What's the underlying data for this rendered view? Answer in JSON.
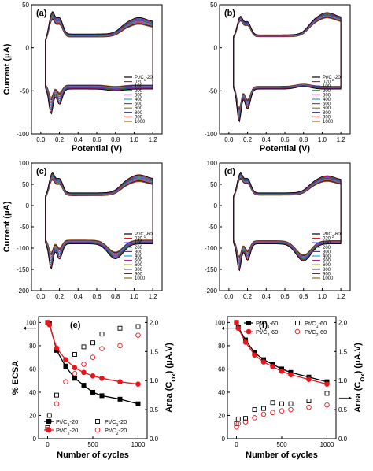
{
  "chart_data": [
    {
      "type": "line",
      "panel_label": "(a)",
      "xlabel": "Potential (V)",
      "ylabel": "Current (μA)",
      "xlim": [
        -0.1,
        1.3
      ],
      "ylim": [
        -100,
        50
      ],
      "xticks": [
        0.0,
        0.2,
        0.4,
        0.6,
        0.8,
        1.0,
        1.2
      ],
      "xtick_labels": [
        "0.0",
        "0.2",
        "0.4",
        "0.6",
        "0.8",
        "1.0",
        "1.2"
      ],
      "yticks": [
        -100,
        -50,
        0,
        50
      ],
      "ytick_labels": [
        "-100",
        "-50",
        "0",
        "50"
      ],
      "legend_position": "right",
      "cycles": [
        {
          "name": "Pt/C1-20",
          "color": "#000000",
          "scale": 1.0
        },
        {
          "name": "020",
          "color": "#e8161b",
          "scale": 0.96
        },
        {
          "name": "100",
          "color": "#2a2ad8",
          "scale": 0.9
        },
        {
          "name": "200",
          "color": "#1a8a1a",
          "scale": 0.84
        },
        {
          "name": "300",
          "color": "#7a1fa2",
          "scale": 0.78
        },
        {
          "name": "400",
          "color": "#20a8c0",
          "scale": 0.73
        },
        {
          "name": "500",
          "color": "#c01e8c",
          "scale": 0.68
        },
        {
          "name": "600",
          "color": "#8b8b1a",
          "scale": 0.63
        },
        {
          "name": "800",
          "color": "#1a1a80",
          "scale": 0.58
        },
        {
          "name": "900",
          "color": "#8b1a1a",
          "scale": 0.54
        },
        {
          "name": "1000",
          "color": "#8b6a1a",
          "scale": 0.5
        }
      ],
      "profile": {
        "h_anodic": 47,
        "h_cathodic": -80,
        "base_anodic": 8,
        "base_cathodic": -48,
        "dl_anodic": 16,
        "oxide_anodic": 30,
        "ox_red_peak": -50,
        "ox_red_x": 0.8
      }
    },
    {
      "type": "line",
      "panel_label": "(b)",
      "xlabel": "Potential (V)",
      "ylabel": "",
      "xlim": [
        -0.1,
        1.3
      ],
      "ylim": [
        -100,
        50
      ],
      "xticks": [
        0.0,
        0.2,
        0.4,
        0.6,
        0.8,
        1.0,
        1.2
      ],
      "xtick_labels": [
        "0.0",
        "0.2",
        "0.4",
        "0.6",
        "0.8",
        "1.0",
        "1.2"
      ],
      "yticks": [
        -100,
        -50,
        0,
        50
      ],
      "ytick_labels": [
        "-100",
        "-50",
        "0",
        "50"
      ],
      "legend_position": "right",
      "cycles": [
        {
          "name": "Pt/C2-20",
          "color": "#000000",
          "scale": 1.0
        },
        {
          "name": "020",
          "color": "#e8161b",
          "scale": 0.97
        },
        {
          "name": "100",
          "color": "#2a2ad8",
          "scale": 0.93
        },
        {
          "name": "200",
          "color": "#1a8a1a",
          "scale": 0.89
        },
        {
          "name": "300",
          "color": "#7a1fa2",
          "scale": 0.85
        },
        {
          "name": "400",
          "color": "#20a8c0",
          "scale": 0.81
        },
        {
          "name": "500",
          "color": "#c01e8c",
          "scale": 0.78
        },
        {
          "name": "600",
          "color": "#8b8b1a",
          "scale": 0.75
        },
        {
          "name": "800",
          "color": "#1a1a80",
          "scale": 0.72
        },
        {
          "name": "900",
          "color": "#8b1a1a",
          "scale": 0.69
        },
        {
          "name": "1000",
          "color": "#8b6a1a",
          "scale": 0.66
        }
      ],
      "profile": {
        "h_anodic": 40,
        "h_cathodic": -90,
        "base_anodic": 12,
        "base_cathodic": -48,
        "dl_anodic": 15,
        "oxide_anodic": 35,
        "ox_red_peak": -45,
        "ox_red_x": 0.8
      }
    },
    {
      "type": "line",
      "panel_label": "(c)",
      "xlabel": "",
      "ylabel": "Current (μA)",
      "xlim": [
        -0.1,
        1.3
      ],
      "ylim": [
        -200,
        100
      ],
      "xticks": [
        0.0,
        0.2,
        0.4,
        0.6,
        0.8,
        1.0,
        1.2
      ],
      "xtick_labels": [
        "0.0",
        "0.2",
        "0.4",
        "0.6",
        "0.8",
        "1.0",
        "1.2"
      ],
      "yticks": [
        -200,
        -150,
        -100,
        -50,
        0,
        50,
        100
      ],
      "ytick_labels": [
        "-200",
        "-150",
        "-100",
        "-50",
        "0",
        "50",
        "100"
      ],
      "legend_position": "right",
      "cycles": [
        {
          "name": "Pt/C1-60",
          "color": "#000000",
          "scale": 1.0
        },
        {
          "name": "020",
          "color": "#e8161b",
          "scale": 0.96
        },
        {
          "name": "100",
          "color": "#2a2ad8",
          "scale": 0.9
        },
        {
          "name": "200",
          "color": "#1a8a1a",
          "scale": 0.84
        },
        {
          "name": "300",
          "color": "#7a1fa2",
          "scale": 0.78
        },
        {
          "name": "400",
          "color": "#20a8c0",
          "scale": 0.73
        },
        {
          "name": "500",
          "color": "#c01e8c",
          "scale": 0.68
        },
        {
          "name": "600",
          "color": "#8b8b1a",
          "scale": 0.63
        },
        {
          "name": "800",
          "color": "#1a1a80",
          "scale": 0.58
        },
        {
          "name": "900",
          "color": "#8b1a1a",
          "scale": 0.54
        },
        {
          "name": "1000",
          "color": "#8b6a1a",
          "scale": 0.5
        }
      ],
      "profile": {
        "h_anodic": 85,
        "h_cathodic": -155,
        "base_anodic": 20,
        "base_cathodic": -90,
        "dl_anodic": 30,
        "oxide_anodic": 62,
        "ox_red_peak": -125,
        "ox_red_x": 0.8
      }
    },
    {
      "type": "line",
      "panel_label": "(d)",
      "xlabel": "",
      "ylabel": "",
      "xlim": [
        -0.1,
        1.3
      ],
      "ylim": [
        -200,
        100
      ],
      "xticks": [
        0.0,
        0.2,
        0.4,
        0.6,
        0.8,
        1.0,
        1.2
      ],
      "xtick_labels": [
        "0.0",
        "0.2",
        "0.4",
        "0.6",
        "0.8",
        "1.0",
        "1.2"
      ],
      "yticks": [
        -200,
        -150,
        -100,
        -50,
        0,
        50,
        100
      ],
      "ytick_labels": [
        "-200",
        "-150",
        "-100",
        "-50",
        "0",
        "50",
        "100"
      ],
      "legend_position": "right",
      "cycles": [
        {
          "name": "Pt/C2-60",
          "color": "#000000",
          "scale": 1.0
        },
        {
          "name": "020",
          "color": "#e8161b",
          "scale": 0.96
        },
        {
          "name": "100",
          "color": "#2a2ad8",
          "scale": 0.91
        },
        {
          "name": "200",
          "color": "#1a8a1a",
          "scale": 0.86
        },
        {
          "name": "300",
          "color": "#7a1fa2",
          "scale": 0.81
        },
        {
          "name": "400",
          "color": "#20a8c0",
          "scale": 0.77
        },
        {
          "name": "500",
          "color": "#c01e8c",
          "scale": 0.73
        },
        {
          "name": "600",
          "color": "#8b8b1a",
          "scale": 0.69
        },
        {
          "name": "800",
          "color": "#1a1a80",
          "scale": 0.65
        },
        {
          "name": "900",
          "color": "#8b1a1a",
          "scale": 0.61
        },
        {
          "name": "1000",
          "color": "#8b6a1a",
          "scale": 0.58
        }
      ],
      "profile": {
        "h_anodic": 85,
        "h_cathodic": -160,
        "base_anodic": 20,
        "base_cathodic": -90,
        "dl_anodic": 30,
        "oxide_anodic": 60,
        "ox_red_peak": -130,
        "ox_red_x": 0.8
      }
    },
    {
      "type": "scatter",
      "panel_label": "(e)",
      "xlabel": "Number of cycles",
      "ylabel": "% ECSA",
      "ylabel_right": "Area (C_Ox) (μA.V)",
      "xlim": [
        -100,
        1100
      ],
      "ylim": [
        0,
        105
      ],
      "ylim_right": [
        0,
        2.1
      ],
      "xticks": [
        0,
        500,
        1000
      ],
      "xtick_labels": [
        "0",
        "500",
        "1000"
      ],
      "yticks": [
        0,
        20,
        40,
        60,
        80,
        100
      ],
      "ytick_labels": [
        "0",
        "20",
        "40",
        "60",
        "80",
        "100"
      ],
      "yticks_right": [
        0.0,
        0.5,
        1.0,
        1.5,
        2.0
      ],
      "ytick_labels_right": [
        "0.0",
        "0.5",
        "1.0",
        "1.5",
        "2.0"
      ],
      "legend_position": "bottom-right",
      "x": [
        0,
        20,
        100,
        200,
        300,
        400,
        500,
        600,
        800,
        1000
      ],
      "series": [
        {
          "name": "Pt/C1-20",
          "axis": "left",
          "style": "filled-square-line",
          "color": "#000000",
          "values": [
            100,
            99,
            76,
            62,
            52,
            46,
            40,
            37,
            34,
            30
          ]
        },
        {
          "name": "Pt/C2-20",
          "axis": "left",
          "style": "filled-circle-line",
          "color": "#e8161b",
          "values": [
            100,
            98,
            78,
            68,
            61,
            57,
            54,
            52,
            49,
            47
          ]
        },
        {
          "name": "Pt/C1-20",
          "axis": "right",
          "style": "open-square",
          "color": "#000000",
          "values": [
            0.19,
            0.4,
            0.75,
            1.25,
            1.45,
            1.58,
            1.65,
            1.8,
            1.9,
            1.93
          ]
        },
        {
          "name": "Pt/C2-20",
          "axis": "right",
          "style": "open-circle",
          "color": "#e8161b",
          "values": [
            0.16,
            0.3,
            0.6,
            0.98,
            1.12,
            1.28,
            1.4,
            1.55,
            1.6,
            1.78
          ]
        }
      ],
      "arrows": [
        {
          "direction": "left",
          "near": "0,1.2",
          "axis": "left"
        }
      ]
    },
    {
      "type": "scatter",
      "panel_label": "(f)",
      "xlabel": "Number of cycles",
      "ylabel": "",
      "ylabel_right": "Area (C_Ox) (μA.V)",
      "xlim": [
        -100,
        1100
      ],
      "ylim": [
        0,
        105
      ],
      "ylim_right": [
        0,
        2.1
      ],
      "xticks": [
        0,
        500,
        1000
      ],
      "xtick_labels": [
        "0",
        "500",
        "1000"
      ],
      "yticks": [
        0,
        20,
        40,
        60,
        80,
        100
      ],
      "ytick_labels": [
        "0",
        "20",
        "40",
        "60",
        "80",
        "100"
      ],
      "yticks_right": [
        0.0,
        0.5,
        1.0,
        1.5,
        2.0
      ],
      "ytick_labels_right": [
        "0.0",
        "0.5",
        "1.0",
        "1.5",
        "2.0"
      ],
      "legend_position": "top-right",
      "x": [
        0,
        20,
        100,
        200,
        300,
        400,
        500,
        600,
        800,
        1000
      ],
      "series": [
        {
          "name": "Pt/C1-60",
          "axis": "left",
          "style": "filled-square-line",
          "color": "#000000",
          "values": [
            100,
            96,
            85,
            74,
            68,
            64,
            60,
            57,
            53,
            49
          ]
        },
        {
          "name": "Pt/C2-60",
          "axis": "left",
          "style": "filled-circle-line",
          "color": "#e8161b",
          "values": [
            100,
            95,
            83,
            72,
            66,
            62,
            58,
            55,
            51,
            47
          ]
        },
        {
          "name": "Pt/C1-60",
          "axis": "right",
          "style": "open-square",
          "color": "#000000",
          "values": [
            0.26,
            0.34,
            0.35,
            0.5,
            0.52,
            0.62,
            0.6,
            0.6,
            0.65,
            0.78
          ]
        },
        {
          "name": "Pt/C2-60",
          "axis": "right",
          "style": "open-circle",
          "color": "#e8161b",
          "values": [
            0.2,
            0.26,
            0.29,
            0.36,
            0.42,
            0.45,
            0.48,
            0.5,
            0.54,
            0.58
          ]
        }
      ]
    }
  ]
}
